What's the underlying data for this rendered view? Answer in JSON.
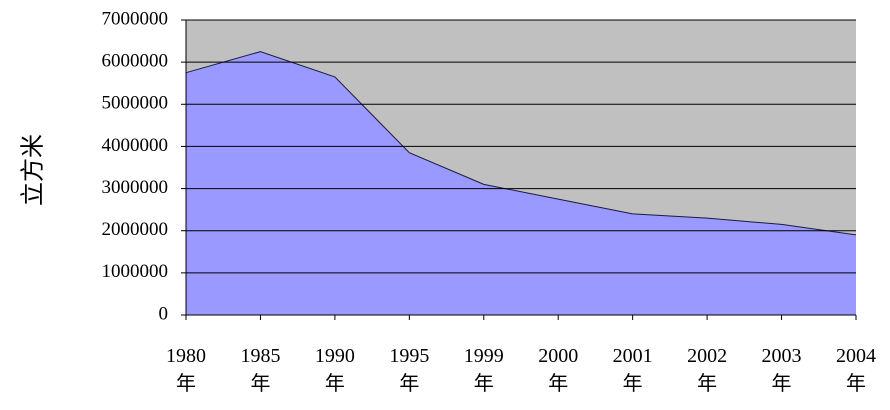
{
  "chart_data": {
    "type": "area",
    "ylabel": "立方米",
    "categories": [
      "1980\n年",
      "1985\n年",
      "1990\n年",
      "1995\n年",
      "1999\n年",
      "2000\n年",
      "2001\n年",
      "2002\n年",
      "2003\n年",
      "2004\n年"
    ],
    "values": [
      5750000,
      6250000,
      5650000,
      3850000,
      3100000,
      2750000,
      2400000,
      2300000,
      2150000,
      1900000
    ],
    "color": "#9999ff",
    "ylim": [
      0,
      7000000
    ],
    "yticks": [
      0,
      1000000,
      2000000,
      3000000,
      4000000,
      5000000,
      6000000,
      7000000
    ],
    "grid": true
  }
}
